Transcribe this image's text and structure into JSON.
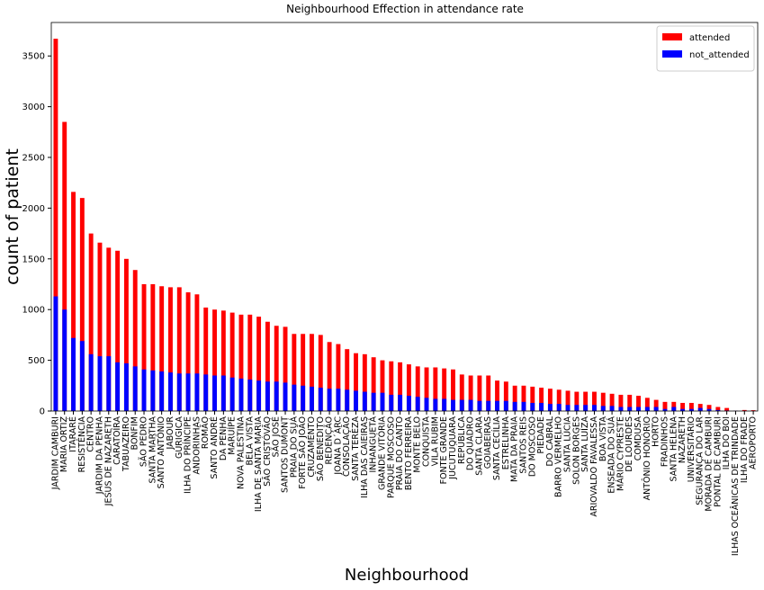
{
  "chart_data": {
    "type": "bar",
    "title": "Neighbourhood Effection in attendance  rate",
    "x_label": "Neighbourhood",
    "y_label": "count of patient",
    "categories": [
      "JARDIM CAMBURI",
      "MARIA ORTIZ",
      "ITARARÉ",
      "RESISTÊNCIA",
      "CENTRO",
      "JARDIM DA PENHA",
      "JESUS DE NAZARETH",
      "CARATOÍRA",
      "TABUAZEIRO",
      "BONFIM",
      "SÃO PEDRO",
      "SANTA MARTHA",
      "SANTO ANTÔNIO",
      "JABOUR",
      "GURIGICA",
      "ILHA DO PRÍNCIPE",
      "ANDORINHAS",
      "ROMÃO",
      "SANTO ANDRÉ",
      "DA PENHA",
      "MARUÍPE",
      "NOVA PALESTINA",
      "BELA VISTA",
      "ILHA DE SANTA MARIA",
      "SÃO CRISTÓVÃO",
      "SÃO JOSÉ",
      "SANTOS DUMONT",
      "PRAIA DO SUÁ",
      "FORTE SÃO JOÃO",
      "CRUZAMENTO",
      "SÃO BENEDITO",
      "REDENÇÃO",
      "JOANA D´ARC",
      "CONSOLAÇÃO",
      "SANTA TEREZA",
      "ILHA DAS CAIEIRAS",
      "INHANGUETÁ",
      "GRANDE VITÓRIA",
      "PARQUE MOSCOSO",
      "PRAIA DO CANTO",
      "BENTO FERREIRA",
      "MONTE BELO",
      "CONQUISTA",
      "VILA RUBIM",
      "FONTE GRANDE",
      "JUCUTUQUARA",
      "REPÚBLICA",
      "DO QUADRO",
      "SANTA CLARA",
      "GOIABEIRAS",
      "SANTA CECÍLIA",
      "ESTRELINHA",
      "MATA DA PRAIA",
      "SANTOS REIS",
      "DO MOSCOSO",
      "PIEDADE",
      "DO CABRAL",
      "BARRO VERMELHO",
      "SANTA LÚCIA",
      "SOLON BORGES",
      "SANTA LUÍZA",
      "ARIOVALDO FAVALESSA",
      "BOA VISTA",
      "ENSEADA DO SUÁ",
      "MÁRIO CYPRESTE",
      "DE LOURDES",
      "COMDUSA",
      "ANTÔNIO HONÓRIO",
      "HORTO",
      "FRADINHOS",
      "SANTA HELENA",
      "NAZARETH",
      "UNIVERSITÁRIO",
      "SEGURANÇA DO LAR",
      "MORADA DE CAMBURI",
      "PONTAL DE CAMBURI",
      "ILHA DO BOI",
      "ILHAS OCEÂNICAS DE TRINDADE",
      "ILHA DO FRADE",
      "AEROPORTO"
    ],
    "series": [
      {
        "name": "attended",
        "color": "#ff0000",
        "values": [
          3670,
          2850,
          2160,
          2100,
          1750,
          1660,
          1610,
          1580,
          1500,
          1390,
          1250,
          1250,
          1230,
          1220,
          1220,
          1170,
          1150,
          1020,
          1000,
          990,
          970,
          950,
          950,
          930,
          880,
          840,
          830,
          760,
          760,
          760,
          750,
          680,
          660,
          610,
          570,
          560,
          530,
          500,
          490,
          480,
          460,
          440,
          430,
          430,
          420,
          410,
          360,
          350,
          350,
          350,
          300,
          290,
          250,
          250,
          240,
          230,
          220,
          210,
          200,
          190,
          190,
          190,
          180,
          170,
          160,
          160,
          150,
          130,
          110,
          90,
          90,
          80,
          80,
          70,
          60,
          40,
          30,
          2,
          10,
          8
        ]
      },
      {
        "name": "not_attended",
        "color": "#0000ff",
        "values": [
          1130,
          1000,
          720,
          690,
          560,
          540,
          540,
          480,
          470,
          440,
          410,
          400,
          390,
          380,
          370,
          370,
          370,
          360,
          350,
          350,
          330,
          320,
          310,
          300,
          290,
          290,
          280,
          260,
          250,
          240,
          230,
          220,
          220,
          210,
          200,
          190,
          180,
          180,
          160,
          160,
          150,
          140,
          130,
          120,
          120,
          110,
          110,
          110,
          100,
          100,
          100,
          100,
          90,
          90,
          80,
          80,
          70,
          70,
          60,
          60,
          60,
          60,
          50,
          50,
          40,
          40,
          40,
          40,
          40,
          20,
          40,
          20,
          20,
          30,
          20,
          10,
          5,
          2,
          2,
          1
        ]
      }
    ],
    "ylim": [
      0,
      3830
    ],
    "yticks": [
      0,
      500,
      1000,
      1500,
      2000,
      2500,
      3000,
      3500
    ],
    "grid": false,
    "legend": "upper right"
  }
}
